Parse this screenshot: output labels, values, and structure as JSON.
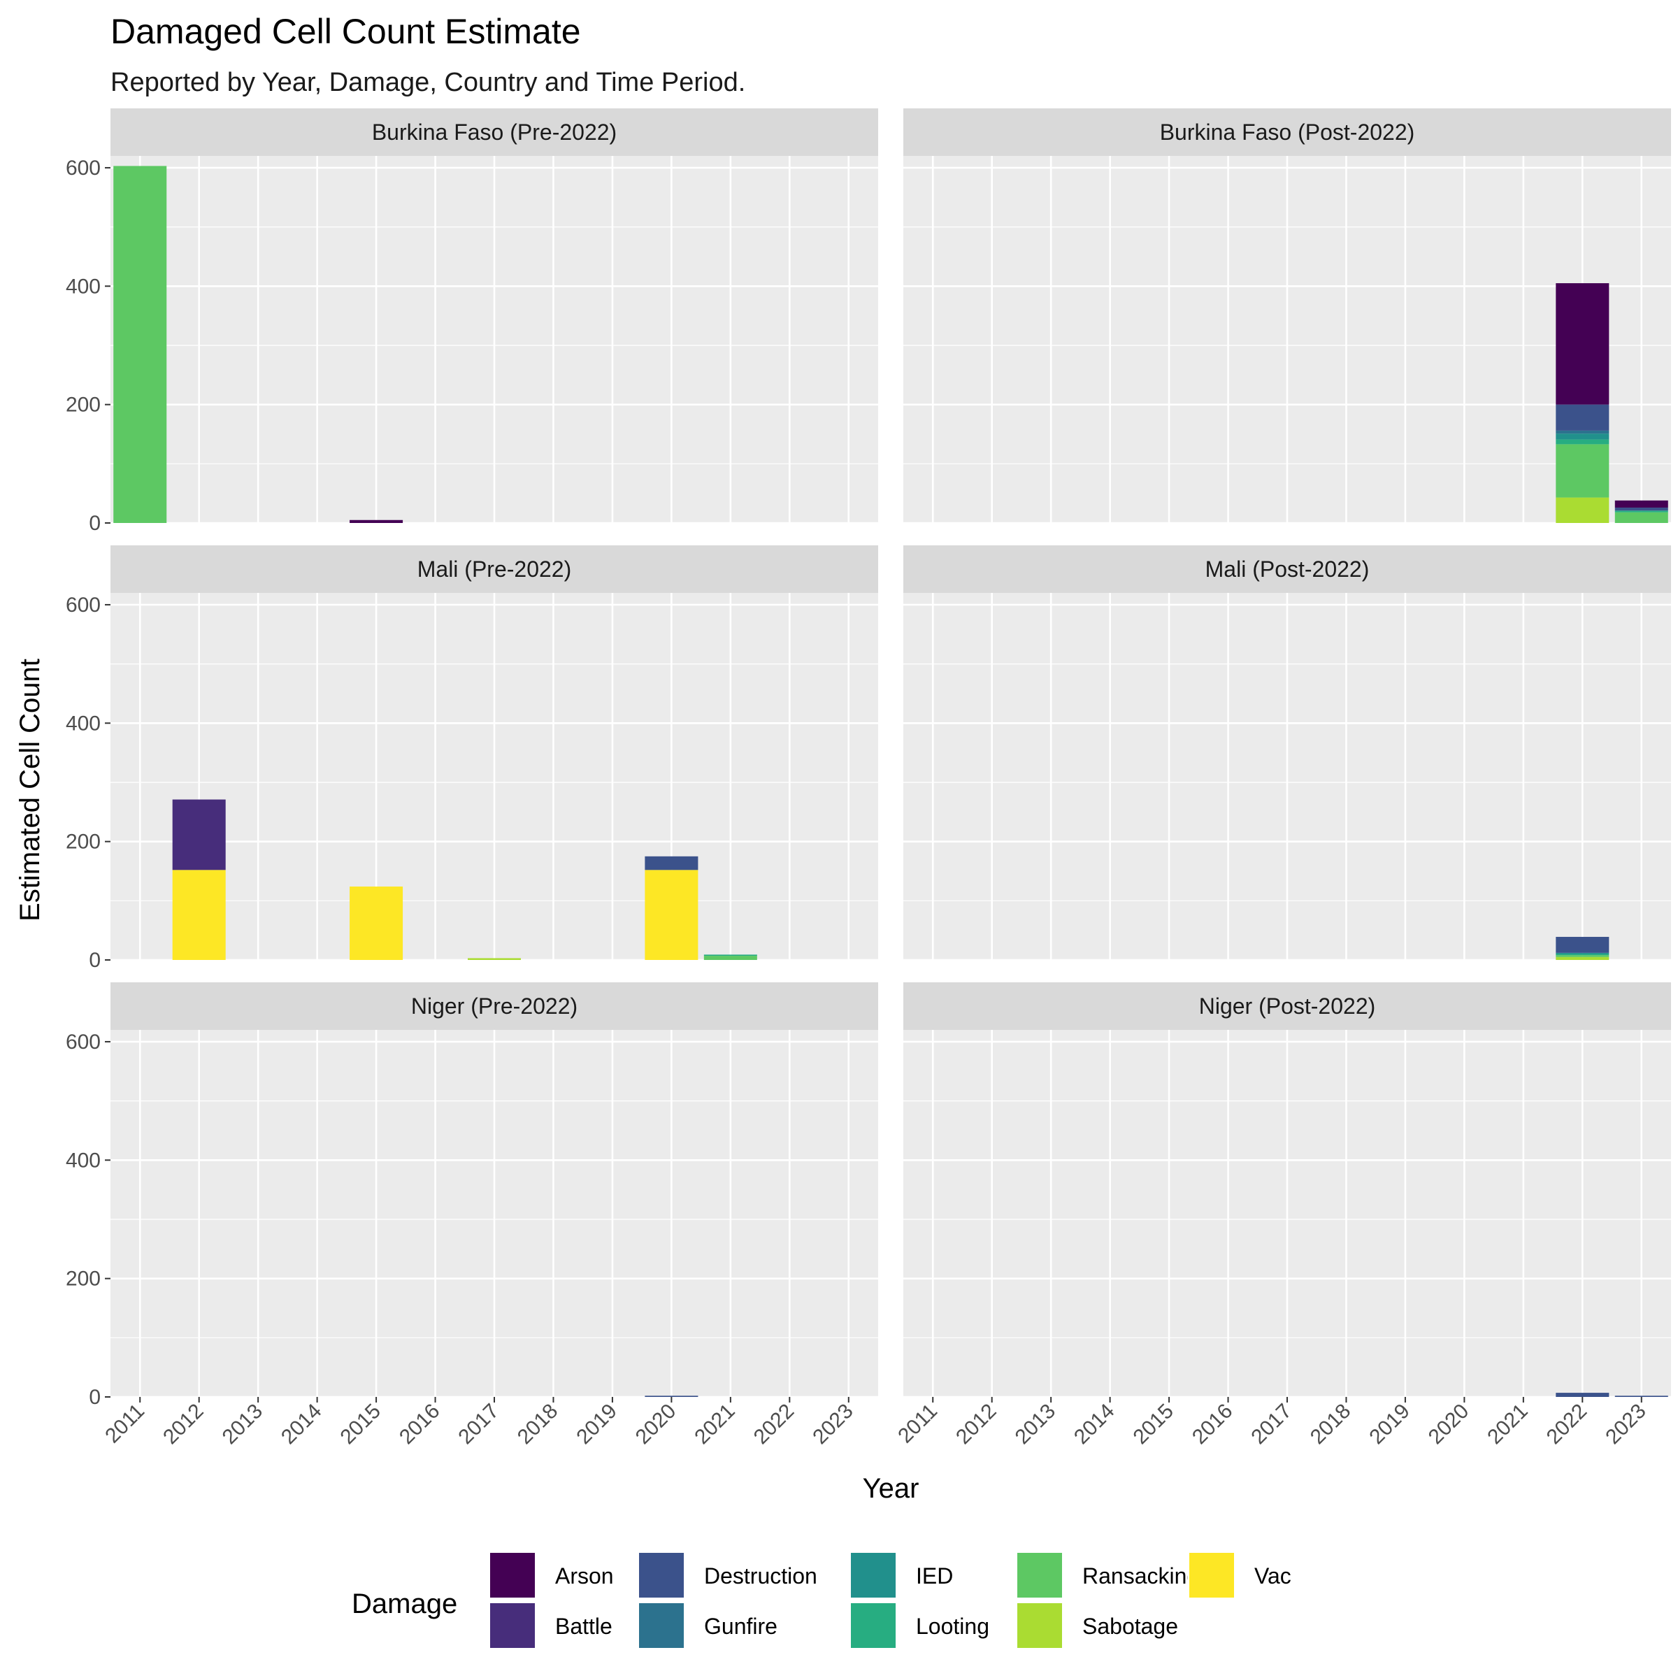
{
  "chart_data": {
    "type": "bar",
    "title": "Damaged Cell Count Estimate",
    "subtitle": "Reported by Year, Damage, Country and Time Period.",
    "xlabel": "Year",
    "ylabel": "Estimated Cell Count",
    "ylim": [
      0,
      620
    ],
    "yticks": [
      0,
      200,
      400,
      600
    ],
    "categories": [
      "2011",
      "2012",
      "2013",
      "2014",
      "2015",
      "2016",
      "2017",
      "2018",
      "2019",
      "2020",
      "2021",
      "2022",
      "2023"
    ],
    "stacked": true,
    "grid": true,
    "legend": {
      "title": "Damage",
      "position": "bottom",
      "entries": [
        "Arson",
        "Battle",
        "Destruction",
        "Gunfire",
        "IED",
        "Looting",
        "Ransacking",
        "Sabotage",
        "Vac"
      ],
      "colors": {
        "Arson": "#440154",
        "Battle": "#472D7B",
        "Destruction": "#3B528B",
        "Gunfire": "#2C728E",
        "IED": "#21908C",
        "Looting": "#27AD81",
        "Ransacking": "#5DC863",
        "Sabotage": "#AADC32",
        "Vac": "#FDE725"
      }
    },
    "panels": [
      {
        "label": "Burkina Faso (Pre-2022)",
        "bars": [
          {
            "year": "2011",
            "segments": [
              {
                "damage": "Ransacking",
                "value": 603
              }
            ]
          },
          {
            "year": "2015",
            "segments": [
              {
                "damage": "Arson",
                "value": 5
              }
            ]
          }
        ]
      },
      {
        "label": "Burkina Faso (Post-2022)",
        "bars": [
          {
            "year": "2022",
            "segments": [
              {
                "damage": "Sabotage",
                "value": 43
              },
              {
                "damage": "Ransacking",
                "value": 90
              },
              {
                "damage": "Looting",
                "value": 8
              },
              {
                "damage": "IED",
                "value": 10
              },
              {
                "damage": "Gunfire",
                "value": 5
              },
              {
                "damage": "Destruction",
                "value": 44
              },
              {
                "damage": "Arson",
                "value": 205
              }
            ]
          },
          {
            "year": "2023",
            "segments": [
              {
                "damage": "Ransacking",
                "value": 18
              },
              {
                "damage": "Looting",
                "value": 3
              },
              {
                "damage": "Destruction",
                "value": 5
              },
              {
                "damage": "Arson",
                "value": 12
              }
            ]
          }
        ]
      },
      {
        "label": "Mali (Pre-2022)",
        "bars": [
          {
            "year": "2012",
            "segments": [
              {
                "damage": "Vac",
                "value": 152
              },
              {
                "damage": "Battle",
                "value": 119
              }
            ]
          },
          {
            "year": "2015",
            "segments": [
              {
                "damage": "Vac",
                "value": 124
              }
            ]
          },
          {
            "year": "2017",
            "segments": [
              {
                "damage": "Sabotage",
                "value": 3
              }
            ]
          },
          {
            "year": "2020",
            "segments": [
              {
                "damage": "Vac",
                "value": 152
              },
              {
                "damage": "Destruction",
                "value": 23
              }
            ]
          },
          {
            "year": "2021",
            "segments": [
              {
                "damage": "Ransacking",
                "value": 7
              },
              {
                "damage": "Looting",
                "value": 2
              }
            ]
          }
        ]
      },
      {
        "label": "Mali (Post-2022)",
        "bars": [
          {
            "year": "2022",
            "segments": [
              {
                "damage": "Sabotage",
                "value": 5
              },
              {
                "damage": "Ransacking",
                "value": 3
              },
              {
                "damage": "Looting",
                "value": 2
              },
              {
                "damage": "IED",
                "value": 2
              },
              {
                "damage": "Destruction",
                "value": 27
              }
            ]
          }
        ]
      },
      {
        "label": "Niger (Pre-2022)",
        "bars": [
          {
            "year": "2020",
            "segments": [
              {
                "damage": "Destruction",
                "value": 2
              }
            ]
          }
        ]
      },
      {
        "label": "Niger (Post-2022)",
        "bars": [
          {
            "year": "2022",
            "segments": [
              {
                "damage": "Destruction",
                "value": 7
              }
            ]
          },
          {
            "year": "2023",
            "segments": [
              {
                "damage": "Destruction",
                "value": 2
              }
            ]
          }
        ]
      }
    ]
  }
}
